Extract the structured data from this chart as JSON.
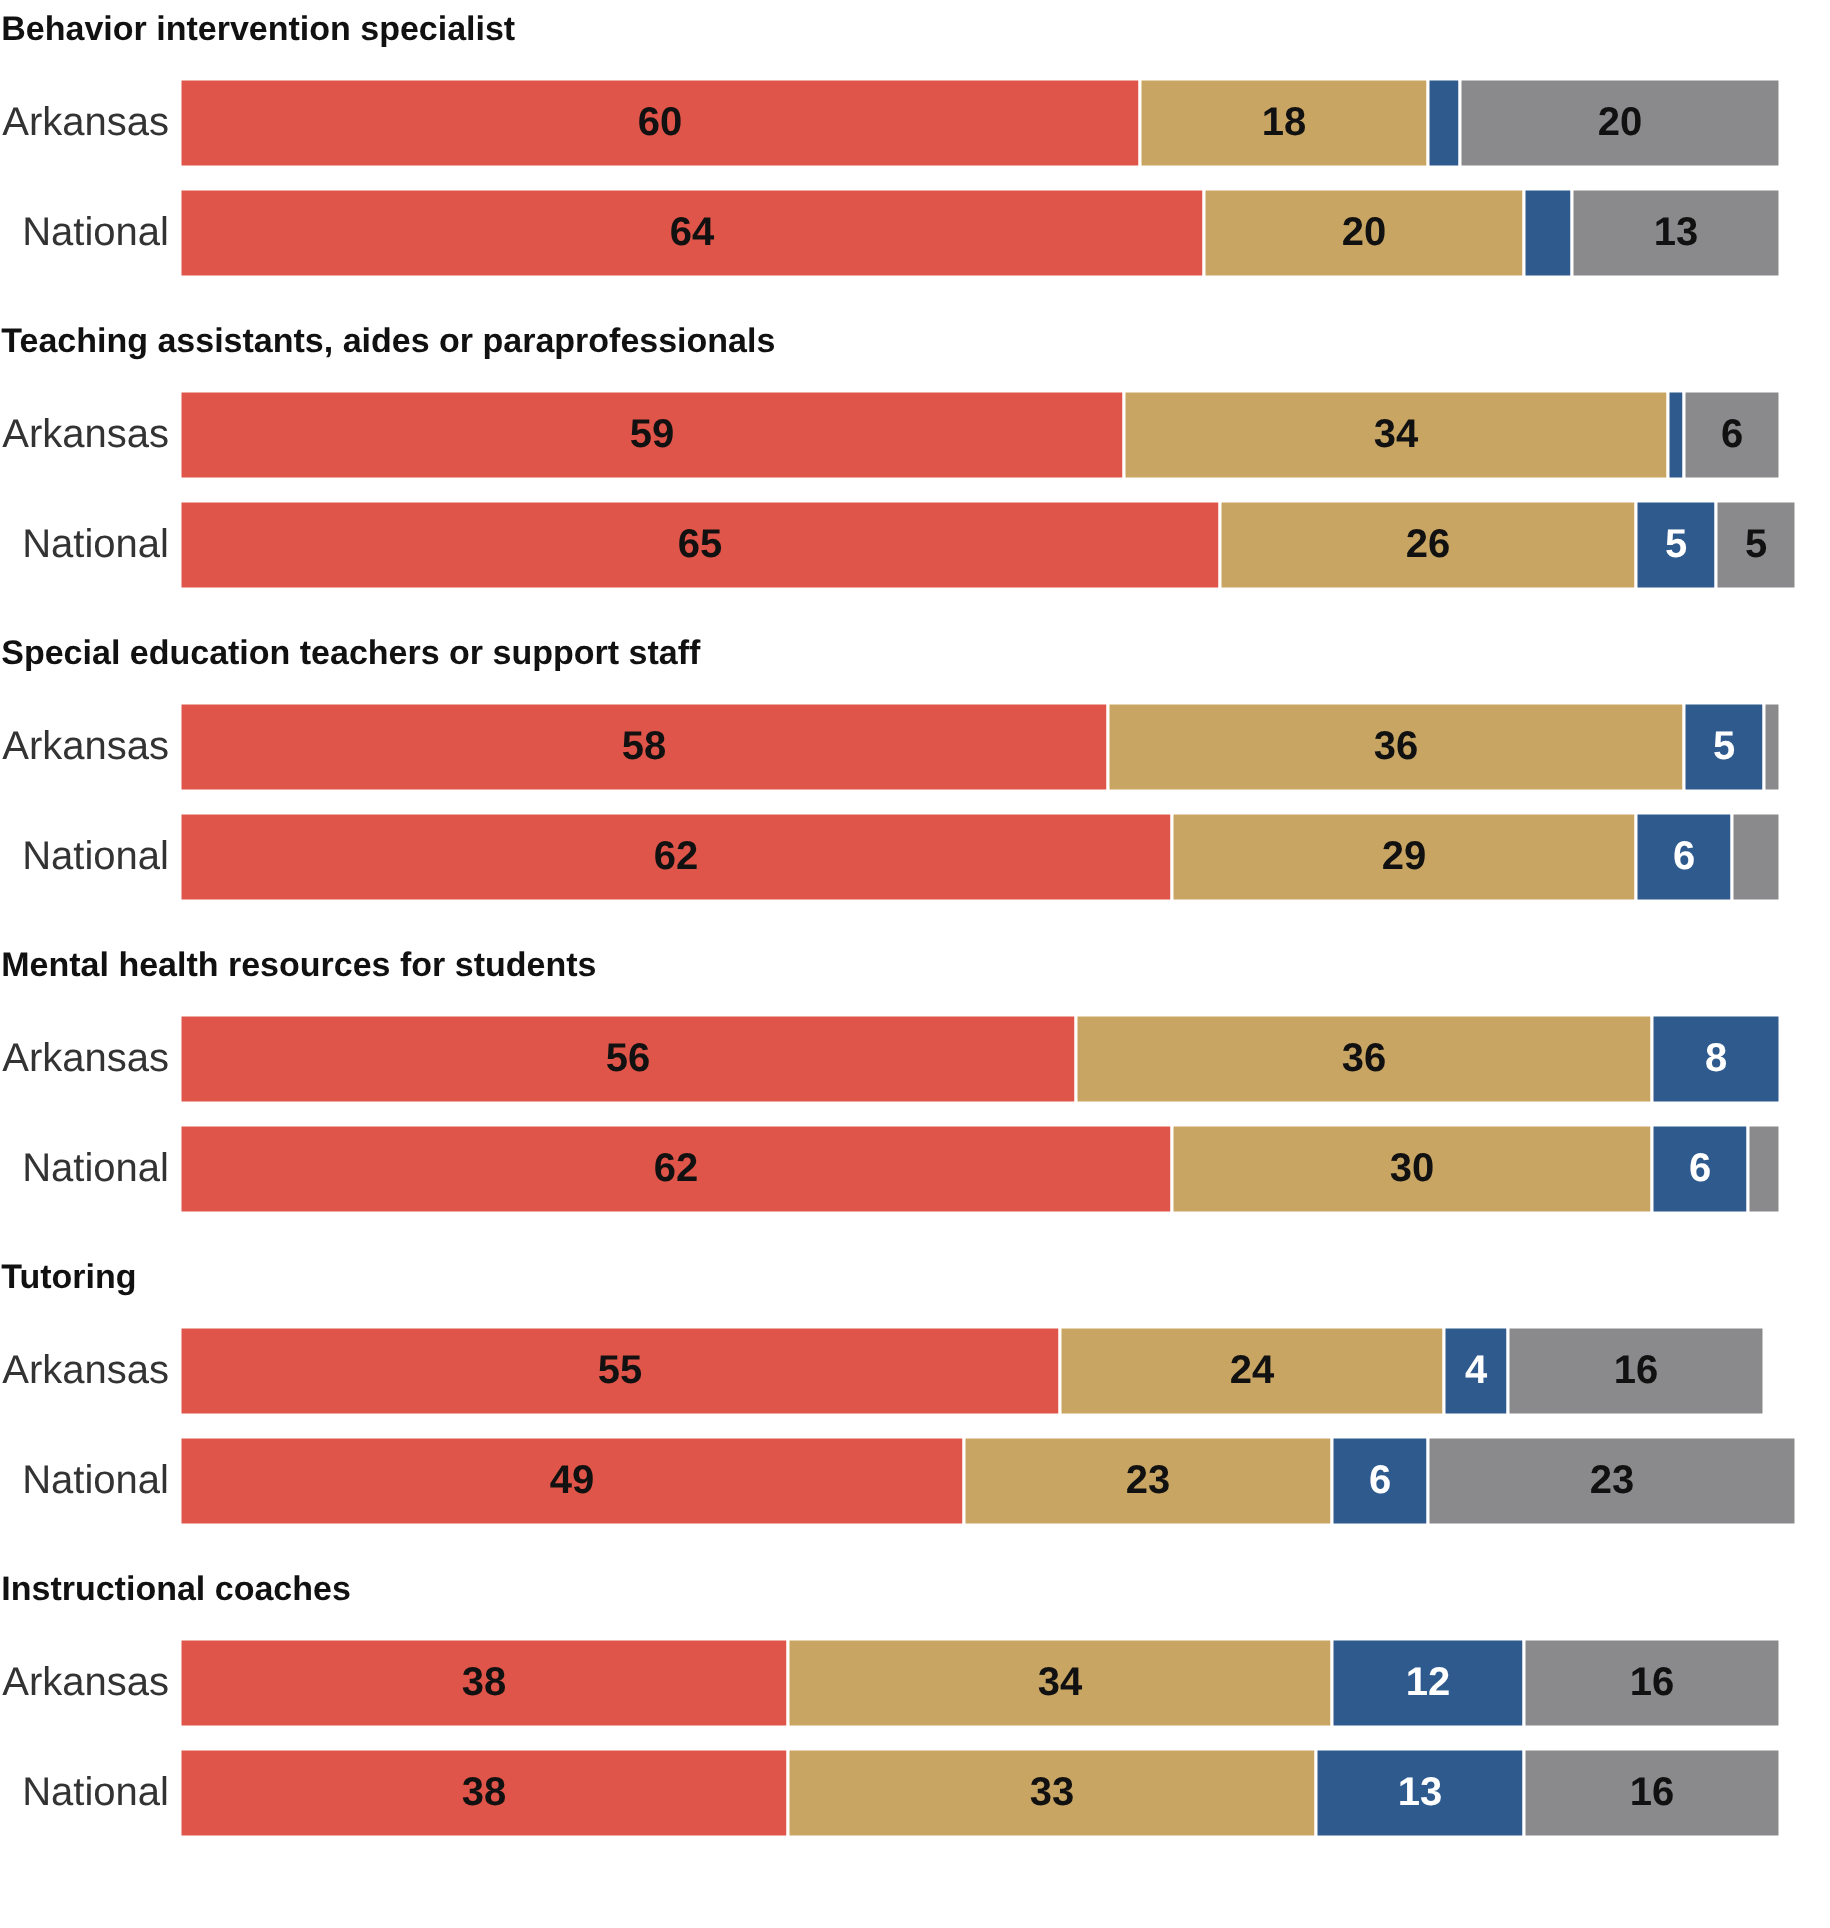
{
  "chart_data": [
    {
      "type": "bar",
      "title": "Behavior intervention specialist",
      "categories": [
        "Arkansas",
        "National"
      ],
      "orientation": "horizontal",
      "stacked": true,
      "xlim": [
        0,
        101
      ],
      "tick_labels": "y",
      "series": [
        {
          "color": "#e05549",
          "values": [
            60,
            64
          ],
          "value_labels": [
            "60",
            "64"
          ]
        },
        {
          "color": "#c9a563",
          "values": [
            18,
            20
          ],
          "value_labels": [
            "18",
            "20"
          ]
        },
        {
          "color": "#2e5a8e",
          "values": [
            2,
            3
          ],
          "value_labels": [
            null,
            null
          ]
        },
        {
          "color": "#8a8a8c",
          "values": [
            20,
            13
          ],
          "value_labels": [
            "20",
            "13"
          ]
        }
      ]
    },
    {
      "type": "bar",
      "title": "Teaching assistants, aides or paraprofessionals",
      "categories": [
        "Arkansas",
        "National"
      ],
      "orientation": "horizontal",
      "stacked": true,
      "xlim": [
        0,
        101
      ],
      "tick_labels": "y",
      "series": [
        {
          "color": "#e05549",
          "values": [
            59,
            65
          ],
          "value_labels": [
            "59",
            "65"
          ]
        },
        {
          "color": "#c9a563",
          "values": [
            34,
            26
          ],
          "value_labels": [
            "34",
            "26"
          ]
        },
        {
          "color": "#2e5a8e",
          "values": [
            1,
            5
          ],
          "value_labels": [
            null,
            "5"
          ]
        },
        {
          "color": "#8a8a8c",
          "values": [
            6,
            5
          ],
          "value_labels": [
            "6",
            "5"
          ]
        }
      ]
    },
    {
      "type": "bar",
      "title": "Special education teachers or support staff",
      "categories": [
        "Arkansas",
        "National"
      ],
      "orientation": "horizontal",
      "stacked": true,
      "xlim": [
        0,
        101
      ],
      "tick_labels": "y",
      "series": [
        {
          "color": "#e05549",
          "values": [
            58,
            62
          ],
          "value_labels": [
            "58",
            "62"
          ]
        },
        {
          "color": "#c9a563",
          "values": [
            36,
            29
          ],
          "value_labels": [
            "36",
            "29"
          ]
        },
        {
          "color": "#2e5a8e",
          "values": [
            5,
            6
          ],
          "value_labels": [
            "5",
            "6"
          ]
        },
        {
          "color": "#8a8a8c",
          "values": [
            1,
            3
          ],
          "value_labels": [
            null,
            null
          ]
        }
      ]
    },
    {
      "type": "bar",
      "title": "Mental health resources for students",
      "categories": [
        "Arkansas",
        "National"
      ],
      "orientation": "horizontal",
      "stacked": true,
      "xlim": [
        0,
        101
      ],
      "tick_labels": "y",
      "series": [
        {
          "color": "#e05549",
          "values": [
            56,
            62
          ],
          "value_labels": [
            "56",
            "62"
          ]
        },
        {
          "color": "#c9a563",
          "values": [
            36,
            30
          ],
          "value_labels": [
            "36",
            "30"
          ]
        },
        {
          "color": "#2e5a8e",
          "values": [
            8,
            6
          ],
          "value_labels": [
            "8",
            "6"
          ]
        },
        {
          "color": "#8a8a8c",
          "values": [
            null,
            2
          ],
          "value_labels": [
            null,
            null
          ]
        }
      ]
    },
    {
      "type": "bar",
      "title": "Tutoring",
      "categories": [
        "Arkansas",
        "National"
      ],
      "orientation": "horizontal",
      "stacked": true,
      "xlim": [
        0,
        101
      ],
      "tick_labels": "y",
      "series": [
        {
          "color": "#e05549",
          "values": [
            55,
            49
          ],
          "value_labels": [
            "55",
            "49"
          ]
        },
        {
          "color": "#c9a563",
          "values": [
            24,
            23
          ],
          "value_labels": [
            "24",
            "23"
          ]
        },
        {
          "color": "#2e5a8e",
          "values": [
            4,
            6
          ],
          "value_labels": [
            "4",
            "6"
          ]
        },
        {
          "color": "#8a8a8c",
          "values": [
            16,
            23
          ],
          "value_labels": [
            "16",
            "23"
          ]
        }
      ]
    },
    {
      "type": "bar",
      "title": "Instructional coaches",
      "categories": [
        "Arkansas",
        "National"
      ],
      "orientation": "horizontal",
      "stacked": true,
      "xlim": [
        0,
        101
      ],
      "tick_labels": "y",
      "series": [
        {
          "color": "#e05549",
          "values": [
            38,
            38
          ],
          "value_labels": [
            "38",
            "38"
          ]
        },
        {
          "color": "#c9a563",
          "values": [
            34,
            33
          ],
          "value_labels": [
            "34",
            "33"
          ]
        },
        {
          "color": "#2e5a8e",
          "values": [
            12,
            13
          ],
          "value_labels": [
            "12",
            "13"
          ]
        },
        {
          "color": "#8a8a8c",
          "values": [
            16,
            16
          ],
          "value_labels": [
            "16",
            "16"
          ]
        }
      ]
    }
  ]
}
